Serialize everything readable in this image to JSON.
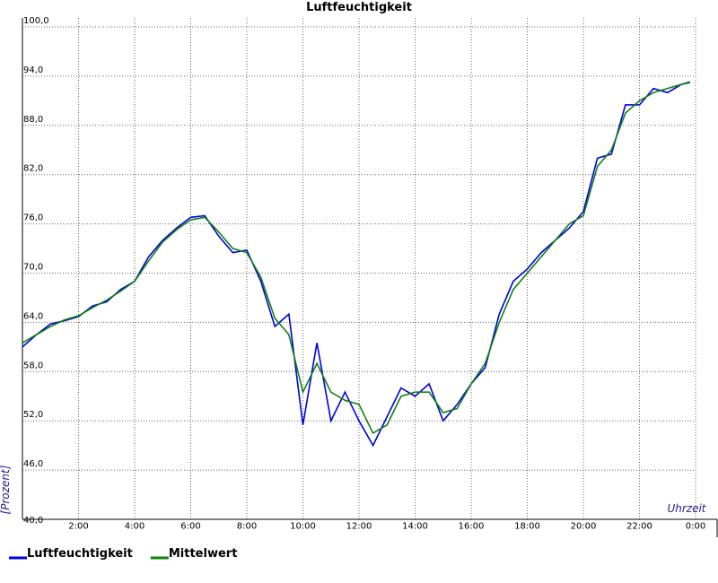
{
  "chart_data": {
    "type": "line",
    "title": "Luftfeuchtigkeit",
    "ylabel": "[Prozent]",
    "xlabel": "Uhrzeit",
    "x": [
      0,
      0.5,
      1,
      1.5,
      2,
      2.5,
      3,
      3.5,
      4,
      4.5,
      5,
      5.5,
      6,
      6.5,
      7,
      7.5,
      8,
      8.5,
      9,
      9.5,
      10,
      10.5,
      11,
      11.5,
      12,
      12.5,
      13,
      13.5,
      14,
      14.5,
      15,
      15.5,
      16,
      16.5,
      17,
      17.5,
      18,
      18.5,
      19,
      19.5,
      20,
      20.5,
      21,
      21.5,
      22,
      22.5,
      23,
      23.5,
      23.8
    ],
    "series": [
      {
        "name": "Luftfeuchtigkeit",
        "color": "#0000dd",
        "values": [
          61,
          62.5,
          63.8,
          64.2,
          64.7,
          66,
          66.5,
          68,
          69,
          72,
          74,
          75.5,
          76.8,
          77,
          74.5,
          72.5,
          72.8,
          69,
          63.5,
          65,
          51.5,
          61.5,
          52,
          55.5,
          52,
          49,
          52.5,
          56,
          55,
          56.5,
          52,
          54,
          56.5,
          58.5,
          65,
          69,
          70.5,
          72.5,
          74,
          75.5,
          77.5,
          84,
          84.5,
          90.5,
          90.5,
          92.5,
          92,
          93,
          93.3
        ]
      },
      {
        "name": "Mittelwert",
        "color": "#108010",
        "values": [
          61.5,
          62.5,
          63.5,
          64.3,
          64.8,
          65.8,
          66.7,
          67.8,
          69,
          71.5,
          73.8,
          75.3,
          76.5,
          76.8,
          75,
          73,
          72.5,
          69.5,
          64.5,
          62.5,
          55.5,
          59,
          55.5,
          54.5,
          54,
          50.5,
          51.5,
          55,
          55.5,
          55.5,
          53,
          53.5,
          56.5,
          59,
          64,
          68,
          70,
          72,
          74,
          76,
          77,
          83,
          85,
          89.5,
          91,
          92,
          92.5,
          93,
          93.2
        ]
      }
    ],
    "xlim": [
      0,
      24
    ],
    "xticks": [
      {
        "value": 2,
        "label": "2:00"
      },
      {
        "value": 4,
        "label": "4:00"
      },
      {
        "value": 6,
        "label": "6:00"
      },
      {
        "value": 8,
        "label": "8:00"
      },
      {
        "value": 10,
        "label": "10:00"
      },
      {
        "value": 12,
        "label": "12:00"
      },
      {
        "value": 14,
        "label": "14:00"
      },
      {
        "value": 16,
        "label": "16:00"
      },
      {
        "value": 18,
        "label": "18:00"
      },
      {
        "value": 20,
        "label": "20:00"
      },
      {
        "value": 22,
        "label": "22:00"
      },
      {
        "value": 24,
        "label": "0:00"
      }
    ],
    "ylim": [
      40,
      100
    ],
    "yticks": [
      {
        "value": 40,
        "label": "40,0"
      },
      {
        "value": 46,
        "label": "46,0"
      },
      {
        "value": 52,
        "label": "52,0"
      },
      {
        "value": 58,
        "label": "58,0"
      },
      {
        "value": 64,
        "label": "64,0"
      },
      {
        "value": 70,
        "label": "70,0"
      },
      {
        "value": 76,
        "label": "76,0"
      },
      {
        "value": 82,
        "label": "82,0"
      },
      {
        "value": 88,
        "label": "88,0"
      },
      {
        "value": 94,
        "label": "94,0"
      },
      {
        "value": 100,
        "label": "100,0"
      }
    ],
    "grid": true
  }
}
